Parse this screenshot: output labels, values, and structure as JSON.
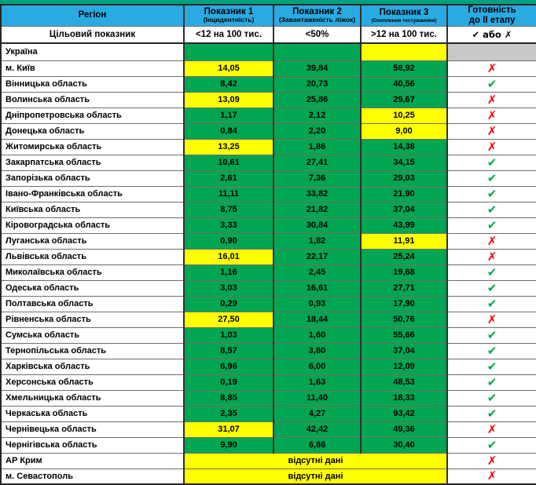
{
  "colors": {
    "header_bg": "#29ABE2",
    "cell_green": "#00A651",
    "cell_yellow": "#FFFF00",
    "cell_gray": "#C8C8C8",
    "check_green": "#00A94F",
    "x_red": "#F50008",
    "top_strip": "#00A17C"
  },
  "marks": {
    "check": "✔",
    "x": "✗"
  },
  "header": {
    "region": "Регіон",
    "indicator1": {
      "title": "Показник 1",
      "subtitle": "(Інцидентність)"
    },
    "indicator2": {
      "title": "Показник 2",
      "subtitle": "(Завантаженість ліжок)"
    },
    "indicator3": {
      "title": "Показник 3",
      "subtitle": "(Охоплення тестуванням)"
    },
    "readiness": {
      "line1": "Готовність",
      "line2": "до II етапу"
    }
  },
  "target_row": {
    "label": "Цільовий показник",
    "indicator1": "<12 на 100 тис.",
    "indicator2": "<50%",
    "indicator3": ">12 на 100 тис.",
    "readiness": "✔ або ✗"
  },
  "rows": [
    {
      "region": "Україна",
      "values": [
        "",
        "",
        ""
      ],
      "value_bgs": [
        "green",
        "green",
        "yellow"
      ],
      "mark": "",
      "mark_bg": "gray"
    },
    {
      "region": "м. Київ",
      "values": [
        "14,05",
        "39,84",
        "58,92"
      ],
      "value_bgs": [
        "yellow",
        "green",
        "green"
      ],
      "mark": "x"
    },
    {
      "region": "Вінницька область",
      "values": [
        "8,42",
        "20,73",
        "40,56"
      ],
      "value_bgs": [
        "green",
        "green",
        "green"
      ],
      "mark": "check"
    },
    {
      "region": "Волинська область",
      "values": [
        "13,09",
        "25,86",
        "29,67"
      ],
      "value_bgs": [
        "yellow",
        "green",
        "green"
      ],
      "mark": "x"
    },
    {
      "region": "Дніпропетровська область",
      "values": [
        "1,17",
        "2,12",
        "10,25"
      ],
      "value_bgs": [
        "green",
        "green",
        "yellow"
      ],
      "mark": "x"
    },
    {
      "region": "Донецька область",
      "values": [
        "0,84",
        "2,20",
        "9,00"
      ],
      "value_bgs": [
        "green",
        "green",
        "yellow"
      ],
      "mark": "x"
    },
    {
      "region": "Житомирська область",
      "values": [
        "13,25",
        "1,86",
        "14,38"
      ],
      "value_bgs": [
        "yellow",
        "green",
        "green"
      ],
      "mark": "x"
    },
    {
      "region": "Закарпатська область",
      "values": [
        "10,61",
        "27,41",
        "34,15"
      ],
      "value_bgs": [
        "green",
        "green",
        "green"
      ],
      "mark": "check"
    },
    {
      "region": "Запорізька область",
      "values": [
        "2,61",
        "7,36",
        "29,03"
      ],
      "value_bgs": [
        "green",
        "green",
        "green"
      ],
      "mark": "check"
    },
    {
      "region": "Івано-Франківська область",
      "values": [
        "11,11",
        "33,82",
        "21,90"
      ],
      "value_bgs": [
        "green",
        "green",
        "green"
      ],
      "mark": "check"
    },
    {
      "region": "Київська область",
      "values": [
        "8,75",
        "21,82",
        "37,04"
      ],
      "value_bgs": [
        "green",
        "green",
        "green"
      ],
      "mark": "check"
    },
    {
      "region": "Кіровоградська область",
      "values": [
        "3,33",
        "30,84",
        "43,99"
      ],
      "value_bgs": [
        "green",
        "green",
        "green"
      ],
      "mark": "check"
    },
    {
      "region": "Луганська область",
      "values": [
        "0,90",
        "1,82",
        "11,91"
      ],
      "value_bgs": [
        "green",
        "green",
        "yellow"
      ],
      "mark": "x"
    },
    {
      "region": "Львівська область",
      "values": [
        "16,01",
        "22,17",
        "25,24"
      ],
      "value_bgs": [
        "yellow",
        "green",
        "green"
      ],
      "mark": "x"
    },
    {
      "region": "Миколаївська область",
      "values": [
        "1,16",
        "2,45",
        "19,68"
      ],
      "value_bgs": [
        "green",
        "green",
        "green"
      ],
      "mark": "check"
    },
    {
      "region": "Одеська область",
      "values": [
        "3,03",
        "16,61",
        "27,71"
      ],
      "value_bgs": [
        "green",
        "green",
        "green"
      ],
      "mark": "check"
    },
    {
      "region": "Полтавська область",
      "values": [
        "0,29",
        "0,93",
        "17,90"
      ],
      "value_bgs": [
        "green",
        "green",
        "green"
      ],
      "mark": "check"
    },
    {
      "region": "Рівненська область",
      "values": [
        "27,50",
        "18,44",
        "50,76"
      ],
      "value_bgs": [
        "yellow",
        "green",
        "green"
      ],
      "mark": "x"
    },
    {
      "region": "Сумська область",
      "values": [
        "1,03",
        "1,60",
        "55,66"
      ],
      "value_bgs": [
        "green",
        "green",
        "green"
      ],
      "mark": "check"
    },
    {
      "region": "Тернопільська область",
      "values": [
        "8,57",
        "3,80",
        "37,04"
      ],
      "value_bgs": [
        "green",
        "green",
        "green"
      ],
      "mark": "check"
    },
    {
      "region": "Харківська область",
      "values": [
        "6,96",
        "6,00",
        "12,09"
      ],
      "value_bgs": [
        "green",
        "green",
        "green"
      ],
      "mark": "check"
    },
    {
      "region": "Херсонська область",
      "values": [
        "0,19",
        "1,63",
        "48,53"
      ],
      "value_bgs": [
        "green",
        "green",
        "green"
      ],
      "mark": "check"
    },
    {
      "region": "Хмельницька область",
      "values": [
        "8,85",
        "11,40",
        "18,33"
      ],
      "value_bgs": [
        "green",
        "green",
        "green"
      ],
      "mark": "check"
    },
    {
      "region": "Черкаська область",
      "values": [
        "2,35",
        "4,27",
        "93,42"
      ],
      "value_bgs": [
        "green",
        "green",
        "green"
      ],
      "mark": "check"
    },
    {
      "region": "Чернівецька область",
      "values": [
        "31,07",
        "42,42",
        "49,36"
      ],
      "value_bgs": [
        "yellow",
        "green",
        "green"
      ],
      "mark": "x"
    },
    {
      "region": "Чернігівська область",
      "values": [
        "9,90",
        "6,86",
        "30,40"
      ],
      "value_bgs": [
        "green",
        "green",
        "green"
      ],
      "mark": "check"
    },
    {
      "region": "АР Крим",
      "no_data": "відсутні дані",
      "mark": "x"
    },
    {
      "region": "м. Севастополь",
      "no_data": "відсутні дані",
      "mark": "x"
    }
  ]
}
